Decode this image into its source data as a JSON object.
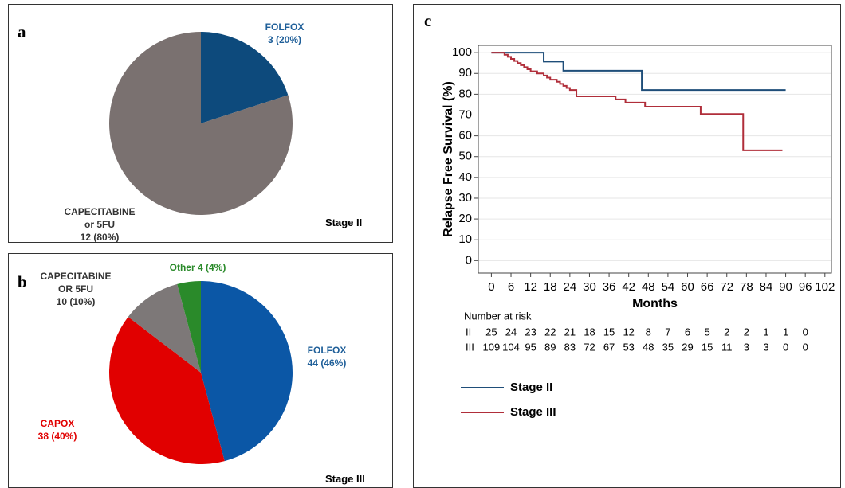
{
  "chart_data": [
    {
      "type": "pie",
      "panel_label": "a",
      "annotation": "Stage II",
      "categories": [
        "FOLFOX",
        "CAPECITABINE or 5FU"
      ],
      "values": [
        3,
        12
      ],
      "value_labels": [
        "3 (20%)",
        "12 (80%)"
      ],
      "colors": [
        "#0d4a7c",
        "#7a7170"
      ],
      "label_colors": [
        "#1f5f99",
        "#333333"
      ]
    },
    {
      "type": "pie",
      "panel_label": "b",
      "annotation": "Stage III",
      "categories": [
        "FOLFOX",
        "CAPOX",
        "CAPECITABINE OR 5FU",
        "Other"
      ],
      "values": [
        44,
        38,
        10,
        4
      ],
      "value_labels": [
        "44 (46%)",
        "38 (40%)",
        "10 (10%)",
        "4 (4%)"
      ],
      "colors": [
        "#0b57a6",
        "#e10000",
        "#7d7878",
        "#2a8a2a"
      ],
      "label_colors": [
        "#1f5f99",
        "#e10000",
        "#333333",
        "#2a8a2a"
      ]
    },
    {
      "type": "line",
      "step": true,
      "panel_label": "c",
      "x_label": "Months",
      "y_label": "Relapse Free Survival (%)",
      "xlim": [
        -4,
        104
      ],
      "ylim": [
        -6,
        103.5
      ],
      "xticks": [
        0,
        6,
        12,
        18,
        24,
        30,
        36,
        42,
        48,
        54,
        60,
        66,
        72,
        78,
        84,
        90,
        96,
        102
      ],
      "yticks": [
        0,
        10,
        20,
        30,
        40,
        50,
        60,
        70,
        80,
        90,
        100
      ],
      "grid": true,
      "series": [
        {
          "name": "Stage II",
          "color": "#1f4e79",
          "x": [
            0,
            16,
            22,
            46,
            90
          ],
          "values": [
            100,
            95.7,
            91.3,
            82,
            82
          ]
        },
        {
          "name": "Stage III",
          "color": "#b02e3a",
          "x": [
            0,
            4,
            5,
            6,
            7,
            8,
            9,
            10,
            11,
            12,
            14,
            16,
            17,
            18,
            20,
            21,
            22,
            23,
            24,
            26,
            38,
            41,
            47,
            64,
            77,
            89
          ],
          "values": [
            100,
            99,
            98,
            97,
            96,
            95,
            94,
            93,
            92,
            91,
            90,
            89,
            88,
            87,
            86,
            85,
            84,
            83,
            82,
            79,
            77.5,
            76,
            74,
            70.5,
            53,
            53
          ]
        }
      ],
      "risk_table": {
        "title": "Number at risk",
        "rows": [
          {
            "label": "II",
            "values": [
              25,
              24,
              23,
              22,
              21,
              18,
              15,
              12,
              8,
              7,
              6,
              5,
              2,
              2,
              1,
              1,
              0
            ]
          },
          {
            "label": "III",
            "values": [
              109,
              104,
              95,
              89,
              83,
              72,
              67,
              53,
              48,
              35,
              29,
              15,
              11,
              3,
              3,
              0,
              0
            ]
          }
        ]
      }
    }
  ]
}
